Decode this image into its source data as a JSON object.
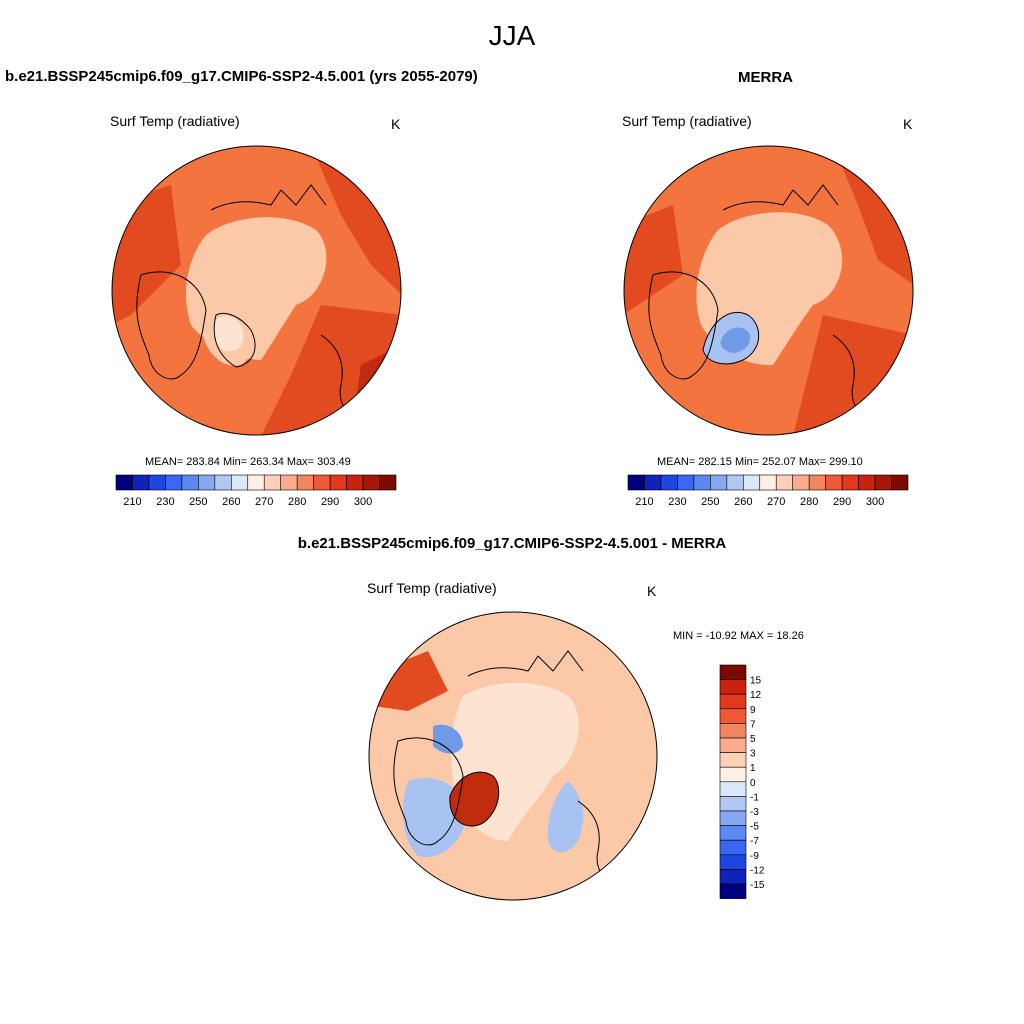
{
  "page": {
    "title": "JJA"
  },
  "colors": {
    "ocean_base": "#f3743f",
    "cold_fill": "#fbc8a8",
    "pale_fill": "#fde3d1",
    "warm_fill": "#e24a20",
    "hot_fill": "#c22c0e",
    "blue_fill": "#a8c2f2",
    "deep_blue_fill": "#6e9ae8",
    "outline": "#000000"
  },
  "panels": {
    "model": {
      "title": "b.e21.BSSP245cmip6.f09_g17.CMIP6-SSP2-4.5.001 (yrs 2055-2079)",
      "variable": "Surf Temp (radiative)",
      "units": "K",
      "stats": "MEAN= 283.84  Min= 263.34  Max= 303.49"
    },
    "obs": {
      "title": "MERRA",
      "variable": "Surf Temp (radiative)",
      "units": "K",
      "stats": "MEAN= 282.15  Min= 252.07  Max= 299.10"
    },
    "diff": {
      "title": "b.e21.BSSP245cmip6.f09_g17.CMIP6-SSP2-4.5.001 - MERRA",
      "variable": "Surf Temp (radiative)",
      "units": "K",
      "stats": "MIN = -10.92 MAX =  18.26"
    }
  },
  "abs_colorbar": {
    "colors": [
      "#00007f",
      "#0f22bb",
      "#1c46df",
      "#3867f0",
      "#5c88f2",
      "#86a8f2",
      "#b2c8f4",
      "#dbe7fa",
      "#fff0e5",
      "#fcd1b8",
      "#f9ad8c",
      "#f48561",
      "#ed5a35",
      "#e3391b",
      "#c9230e",
      "#a51706",
      "#7a0900"
    ],
    "tick_labels": [
      "210",
      "230",
      "250",
      "260",
      "270",
      "280",
      "290",
      "300"
    ]
  },
  "diff_colorbar": {
    "colors": [
      "#00007f",
      "#0f22bb",
      "#1c46df",
      "#3867f0",
      "#5c88f2",
      "#86a8f2",
      "#b2c8f4",
      "#dbe7fa",
      "#fff0e5",
      "#fcd1b8",
      "#f9ad8c",
      "#f48561",
      "#ed5a35",
      "#e3391b",
      "#c9230e",
      "#7a0900"
    ],
    "tick_labels": [
      "15",
      "12",
      "9",
      "7",
      "5",
      "3",
      "1",
      "0",
      "-1",
      "-3",
      "-5",
      "-7",
      "-9",
      "-12",
      "-15"
    ]
  }
}
